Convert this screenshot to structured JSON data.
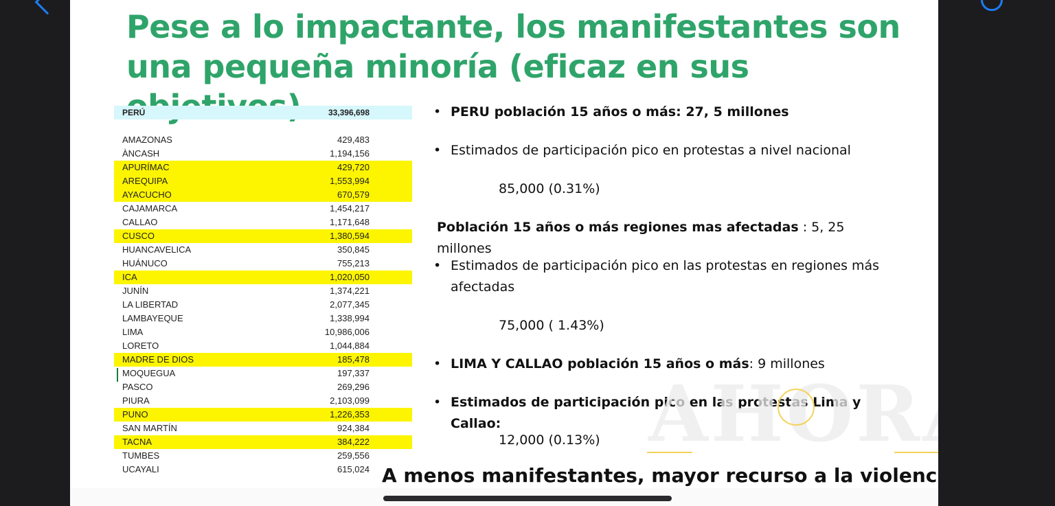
{
  "toolbar": {
    "icons": [
      "back-chevron-icon",
      "drag-handle-dot",
      "share-icon",
      "search-icon",
      "keyboard-icon",
      "markup-icon"
    ],
    "accent": "#1e7cf2"
  },
  "slide": {
    "title_line1": "Pese a lo impactante, los manifestantes son",
    "title_line2": "una pequeña minoría (eficaz en sus objetivos)",
    "title_color": "#2fa46a",
    "table": {
      "total": {
        "name": "PERÚ",
        "value": "33,396,698"
      },
      "rows": [
        {
          "name": "AMAZONAS",
          "value": "429,483",
          "highlight": false
        },
        {
          "name": "ÀNCASH",
          "value": "1,194,156",
          "highlight": false
        },
        {
          "name": "APURÍMAC",
          "value": "429,720",
          "highlight": true
        },
        {
          "name": "AREQUIPA",
          "value": "1,553,994",
          "highlight": true
        },
        {
          "name": "AYACUCHO",
          "value": "670,579",
          "highlight": true
        },
        {
          "name": "CAJAMARCA",
          "value": "1,454,217",
          "highlight": false
        },
        {
          "name": "CALLAO",
          "value": "1,171,648",
          "highlight": false
        },
        {
          "name": "CUSCO",
          "value": "1,380,594",
          "highlight": true
        },
        {
          "name": "HUANCAVELICA",
          "value": "350,845",
          "highlight": false
        },
        {
          "name": "HUÁNUCO",
          "value": "755,213",
          "highlight": false
        },
        {
          "name": "ICA",
          "value": "1,020,050",
          "highlight": true
        },
        {
          "name": "JUNÍN",
          "value": "1,374,221",
          "highlight": false
        },
        {
          "name": "LA LIBERTAD",
          "value": "2,077,345",
          "highlight": false
        },
        {
          "name": "LAMBAYEQUE",
          "value": "1,338,994",
          "highlight": false
        },
        {
          "name": "LIMA",
          "value": "10,986,006",
          "highlight": false
        },
        {
          "name": "LORETO",
          "value": "1,044,884",
          "highlight": false
        },
        {
          "name": "MADRE DE DIOS",
          "value": "185,478",
          "highlight": true
        },
        {
          "name": "MOQUEGUA",
          "value": "197,337",
          "highlight": false
        },
        {
          "name": "PASCO",
          "value": "269,296",
          "highlight": false
        },
        {
          "name": "PIURA",
          "value": "2,103,099",
          "highlight": false
        },
        {
          "name": "PUNO",
          "value": "1,226,353",
          "highlight": true
        },
        {
          "name": "SAN MARTÍN",
          "value": "924,384",
          "highlight": false
        },
        {
          "name": "TACNA",
          "value": "384,222",
          "highlight": true
        },
        {
          "name": "TUMBES",
          "value": "259,556",
          "highlight": false
        },
        {
          "name": "UCAYALI",
          "value": "615,024",
          "highlight": false
        }
      ]
    },
    "notes": {
      "b1_bold": "PERU población 15 años o más:  27, 5 millones",
      "b2": "Estimados de participación pico en protestas a nivel nacional",
      "v1": "85,000  (0.31%)",
      "p_bold": "Población 15 años o más regiones mas afectadas",
      "p_rest": " : 5, 25 millones",
      "b3_line1": "Estimados de participación pico en las protestas en regiones más",
      "b3_line2": "afectadas",
      "v2": "75,000 ( 1.43%)",
      "b4_bold": "LIMA Y CALLAO población 15 años o más",
      "b4_rest": ": 9 millones",
      "b5_bold": "Estimados de participación pico en las protestas Lima y Callao:",
      "v3": "12,000 (0.13%)"
    },
    "footer": "A menos manifestantes, mayor recurso a la violencia",
    "watermark": "AHORA"
  }
}
